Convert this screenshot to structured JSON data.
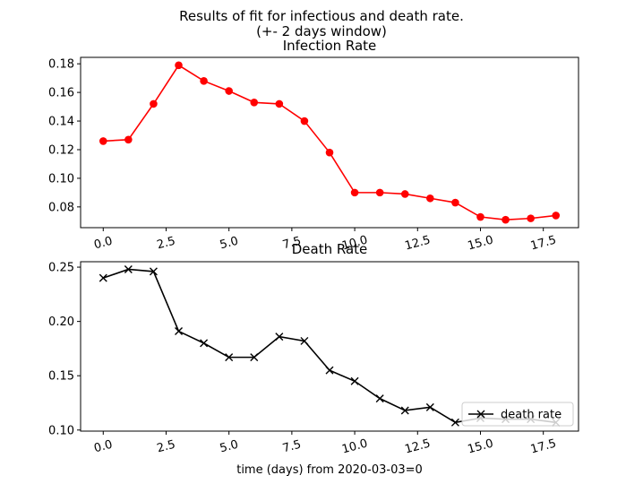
{
  "figure": {
    "suptitle_line1": "Results of fit for infectious and death rate.",
    "suptitle_line2": "(+- 2 days window)"
  },
  "chart_data": [
    {
      "type": "line",
      "title": "Infection Rate",
      "xlabel": "",
      "ylabel": "",
      "x": [
        0,
        1,
        2,
        3,
        4,
        5,
        6,
        7,
        8,
        9,
        10,
        11,
        12,
        13,
        14,
        15,
        16,
        17,
        18
      ],
      "series": [
        {
          "color": "#ff0000",
          "marker": "circle",
          "values": [
            0.126,
            0.127,
            0.152,
            0.179,
            0.168,
            0.161,
            0.153,
            0.152,
            0.14,
            0.118,
            0.09,
            0.09,
            0.089,
            0.086,
            0.083,
            0.073,
            0.071,
            0.072,
            0.074
          ]
        }
      ],
      "xlim": [
        -0.9,
        18.9
      ],
      "ylim": [
        0.0655,
        0.1845
      ],
      "xticks": [
        0.0,
        2.5,
        5.0,
        7.5,
        10.0,
        12.5,
        15.0,
        17.5
      ],
      "xtick_labels": [
        "0.0",
        "2.5",
        "5.0",
        "7.5",
        "10.0",
        "12.5",
        "15.0",
        "17.5"
      ],
      "yticks": [
        0.08,
        0.1,
        0.12,
        0.14,
        0.16,
        0.18
      ],
      "ytick_labels": [
        "0.08",
        "0.10",
        "0.12",
        "0.14",
        "0.16",
        "0.18"
      ],
      "grid": false
    },
    {
      "type": "line",
      "title": "Death Rate",
      "xlabel": "time (days) from 2020-03-03=0",
      "ylabel": "",
      "x": [
        0,
        1,
        2,
        3,
        4,
        5,
        6,
        7,
        8,
        9,
        10,
        11,
        12,
        13,
        14,
        15,
        16,
        17,
        18
      ],
      "series": [
        {
          "name": "death rate",
          "color": "#000000",
          "marker": "x",
          "values": [
            0.24,
            0.248,
            0.246,
            0.191,
            0.18,
            0.167,
            0.167,
            0.186,
            0.182,
            0.155,
            0.145,
            0.129,
            0.118,
            0.121,
            0.107,
            0.111,
            0.11,
            0.11,
            0.107
          ]
        }
      ],
      "xlim": [
        -0.9,
        18.9
      ],
      "ylim": [
        0.099,
        0.255
      ],
      "xticks": [
        0.0,
        2.5,
        5.0,
        7.5,
        10.0,
        12.5,
        15.0,
        17.5
      ],
      "xtick_labels": [
        "0.0",
        "2.5",
        "5.0",
        "7.5",
        "10.0",
        "12.5",
        "15.0",
        "17.5"
      ],
      "yticks": [
        0.1,
        0.15,
        0.2,
        0.25
      ],
      "ytick_labels": [
        "0.10",
        "0.15",
        "0.20",
        "0.25"
      ],
      "legend": "lower-right",
      "grid": false
    }
  ]
}
